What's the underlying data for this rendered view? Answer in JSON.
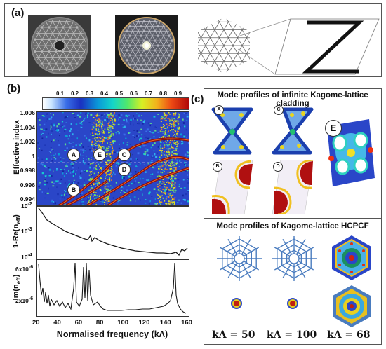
{
  "panel_a": {
    "label": "(a)"
  },
  "panel_b": {
    "label": "(b)",
    "colorbar_ticks": [
      "0.1",
      "0.2",
      "0.3",
      "0.4",
      "0.5",
      "0.6",
      "0.7",
      "0.8",
      "0.9"
    ],
    "heatmap": {
      "ylabel": "Effective index",
      "yticks": [
        "1.006",
        "1.004",
        "1.002",
        "1",
        "0.998",
        "0.996",
        "0.994"
      ],
      "point_labels": [
        "A",
        "E",
        "C",
        "D",
        "B"
      ]
    },
    "loss_plot": {
      "ylabel": "1-Re(n",
      "ylabel_sub": "eff",
      "ylabel_end": ")",
      "yticks": [
        {
          "base": "10",
          "exp": "-2"
        },
        {
          "base": "10",
          "exp": "-3"
        },
        {
          "base": "10",
          "exp": "-4"
        }
      ]
    },
    "im_plot": {
      "ylabel": "Im(n",
      "ylabel_sub": "eff",
      "ylabel_end": ")",
      "yticks": [
        {
          "base": "6x10",
          "exp": "-6"
        },
        {
          "base": "2x10",
          "exp": "-6"
        }
      ]
    },
    "xticks": [
      "20",
      "40",
      "60",
      "80",
      "100",
      "120",
      "140",
      "160"
    ],
    "xlabel": "Normalised frequency (kΛ)"
  },
  "panel_c": {
    "label": "(c)",
    "title_top": "Mode profiles of infinite Kagome-lattice cladding",
    "mode_labels": [
      "A",
      "C",
      "E",
      "B",
      "D"
    ],
    "title_bottom": "Mode profiles of Kagome-lattice HCPCF",
    "k_labels": [
      "kΛ = 50",
      "kΛ = 100",
      "kΛ = 68"
    ]
  },
  "colors": {
    "curve": "#1a1a1a",
    "heat_bg": "#2a46c8",
    "heat_hot": "#e0e020"
  }
}
